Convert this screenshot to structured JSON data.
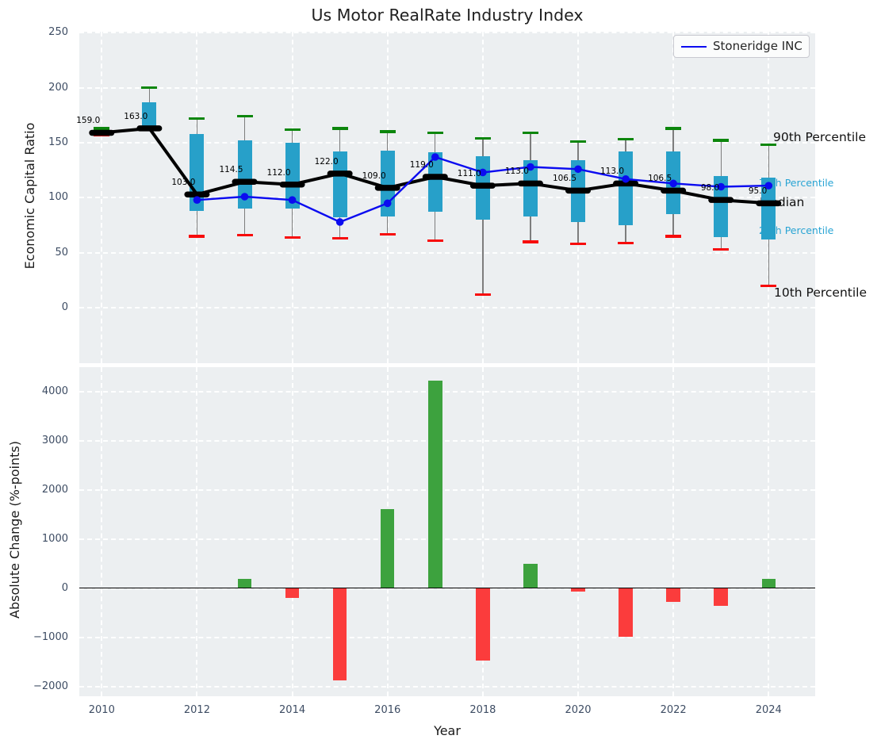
{
  "title": "Us Motor RealRate Industry Index",
  "right_labels": {
    "p90": "90th Percentile",
    "p75": "75th Percentile",
    "median": "Median",
    "p25": "25th Percentile",
    "p10": "10th Percentile"
  },
  "chart_data": [
    {
      "type": "line",
      "subtype": "median-line-with-percentile-boxes",
      "title": "Us Motor RealRate Industry Index",
      "ylabel": "Economic Capital Ratio",
      "ylim": [
        -49,
        251
      ],
      "yticks": [
        0,
        50,
        100,
        150,
        200,
        250
      ],
      "ytick_labels": [
        "0",
        "50",
        "100",
        "150",
        "200",
        "250"
      ],
      "grid": true,
      "legend_position": "upper right",
      "years": [
        2010,
        2011,
        2012,
        2013,
        2014,
        2015,
        2016,
        2017,
        2018,
        2019,
        2020,
        2021,
        2022,
        2023,
        2024
      ],
      "median": [
        159,
        163,
        103,
        114.5,
        112,
        122,
        109,
        119,
        111,
        113,
        106.5,
        113,
        106.5,
        98,
        95
      ],
      "median_labels": [
        "159.0",
        "163.0",
        "103.0",
        "114.5",
        "112.0",
        "122.0",
        "109.0",
        "119.0",
        "111.0",
        "113.0",
        "106.5",
        "113.0",
        "106.5",
        "98.0",
        "95.0"
      ],
      "p90": [
        163,
        200,
        172,
        174,
        162,
        163,
        160,
        159,
        154,
        159,
        151,
        153,
        163,
        152,
        148
      ],
      "p75": [
        160,
        187,
        158,
        152,
        150,
        142,
        143,
        141,
        138,
        134,
        134,
        142,
        142,
        120,
        118
      ],
      "p25": [
        157.5,
        164.5,
        88,
        90,
        90,
        82,
        83,
        87,
        80,
        83,
        78,
        75,
        85,
        64,
        62
      ],
      "p10": [
        157,
        162,
        65,
        66,
        64,
        63,
        67,
        61,
        12,
        60,
        58,
        59,
        65,
        53,
        20
      ],
      "company": {
        "name": "Stoneridge INC",
        "years": [
          2012,
          2013,
          2014,
          2015,
          2016,
          2017,
          2018,
          2019,
          2020,
          2021,
          2022,
          2023,
          2024
        ],
        "values": [
          98,
          101,
          98,
          78,
          95,
          137,
          123,
          128,
          126,
          117,
          113,
          110,
          111
        ]
      },
      "colors": {
        "box": "#27a0c9",
        "median": "#000000",
        "company_line": "#0b0bf0",
        "p90_cap": "#0c860c",
        "p10_cap": "#f70b0b",
        "whisker": "#7d7d7d"
      }
    },
    {
      "type": "bar",
      "ylabel": "Absolute Change (%-points)",
      "xlabel": "Year",
      "ylim": [
        -2200,
        4490
      ],
      "yticks": [
        -2000,
        -1000,
        0,
        1000,
        2000,
        3000,
        4000
      ],
      "ytick_labels": [
        "−2000",
        "−1000",
        "0",
        "1000",
        "2000",
        "3000",
        "4000"
      ],
      "xticks": [
        2010,
        2012,
        2014,
        2016,
        2018,
        2020,
        2022,
        2024
      ],
      "xtick_labels": [
        "2010",
        "2012",
        "2014",
        "2016",
        "2018",
        "2020",
        "2022",
        "2024"
      ],
      "years": [
        2013,
        2014,
        2015,
        2016,
        2017,
        2018,
        2019,
        2020,
        2021,
        2022,
        2023,
        2024
      ],
      "values": [
        190,
        -200,
        -1885,
        1600,
        4220,
        -1480,
        490,
        -70,
        -990,
        -280,
        -370,
        190
      ],
      "colors": {
        "positive": "#3da23e",
        "negative": "#fb3c3c"
      }
    }
  ]
}
